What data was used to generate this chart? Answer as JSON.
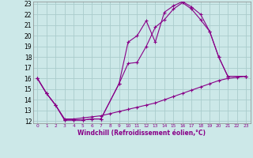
{
  "title": "",
  "xlabel": "Windchill (Refroidissement éolien,°C)",
  "bg_color": "#cce8e8",
  "line_color": "#880088",
  "grid_color": "#aacccc",
  "xlim": [
    -0.5,
    23.5
  ],
  "ylim": [
    11.8,
    23.2
  ],
  "xticks": [
    0,
    1,
    2,
    3,
    4,
    5,
    6,
    7,
    8,
    9,
    10,
    11,
    12,
    13,
    14,
    15,
    16,
    17,
    18,
    19,
    20,
    21,
    22,
    23
  ],
  "yticks": [
    12,
    13,
    14,
    15,
    16,
    17,
    18,
    19,
    20,
    21,
    22,
    23
  ],
  "curve1_x": [
    0,
    1,
    2,
    3,
    4,
    5,
    6,
    7,
    9,
    10,
    11,
    12,
    13,
    14,
    15,
    16,
    17,
    18,
    19,
    20,
    21,
    23
  ],
  "curve1_y": [
    16.0,
    14.6,
    13.5,
    12.1,
    12.1,
    12.1,
    12.2,
    12.2,
    15.5,
    19.4,
    20.0,
    21.4,
    19.4,
    22.2,
    22.8,
    23.2,
    22.7,
    22.0,
    20.4,
    18.0,
    16.2,
    16.2
  ],
  "curve2_x": [
    0,
    1,
    2,
    3,
    4,
    5,
    6,
    7,
    9,
    10,
    11,
    12,
    13,
    14,
    15,
    16,
    17,
    18,
    19,
    20,
    21,
    23
  ],
  "curve2_y": [
    16.0,
    14.6,
    13.5,
    12.1,
    12.1,
    12.1,
    12.2,
    12.2,
    15.5,
    17.4,
    17.5,
    19.0,
    20.8,
    21.5,
    22.5,
    23.1,
    22.5,
    21.5,
    20.4,
    18.0,
    16.2,
    16.2
  ],
  "curve3_x": [
    0,
    1,
    2,
    3,
    4,
    5,
    6,
    7,
    8,
    9,
    10,
    11,
    12,
    13,
    14,
    15,
    16,
    17,
    18,
    19,
    20,
    21,
    22,
    23
  ],
  "curve3_y": [
    16.0,
    14.6,
    13.5,
    12.2,
    12.2,
    12.3,
    12.4,
    12.5,
    12.7,
    12.9,
    13.1,
    13.3,
    13.5,
    13.7,
    14.0,
    14.3,
    14.6,
    14.9,
    15.2,
    15.5,
    15.8,
    16.0,
    16.1,
    16.2
  ]
}
